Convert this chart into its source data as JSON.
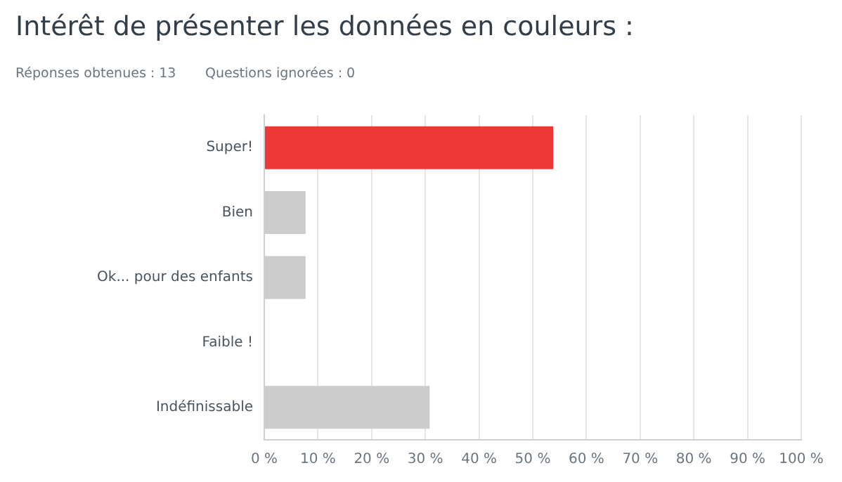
{
  "chart_data": {
    "type": "bar",
    "orientation": "horizontal",
    "title": "Intérêt de présenter les données en couleurs :",
    "annotations": [
      "Réponses obtenues : 13",
      "Questions ignorées : 0"
    ],
    "categories": [
      "Super!",
      "Bien",
      "Ok... pour des enfants",
      "Faible !",
      "Indéfinissable"
    ],
    "values": [
      53.8,
      7.7,
      7.7,
      0,
      30.8
    ],
    "colors": [
      "#ee3835",
      "#cccccc",
      "#cccccc",
      "#cccccc",
      "#cccccc"
    ],
    "xlim": [
      0,
      100
    ],
    "xticks": [
      {
        "value": 0,
        "label": "0 %"
      },
      {
        "value": 10,
        "label": "10 %"
      },
      {
        "value": 20,
        "label": "20 %"
      },
      {
        "value": 30,
        "label": "30 %"
      },
      {
        "value": 40,
        "label": "40 %"
      },
      {
        "value": 50,
        "label": "50 %"
      },
      {
        "value": 60,
        "label": "60 %"
      },
      {
        "value": 70,
        "label": "70 %"
      },
      {
        "value": 80,
        "label": "80 %"
      },
      {
        "value": 90,
        "label": "90 %"
      },
      {
        "value": 100,
        "label": "100 %"
      }
    ],
    "grid": "x",
    "legend": false
  }
}
